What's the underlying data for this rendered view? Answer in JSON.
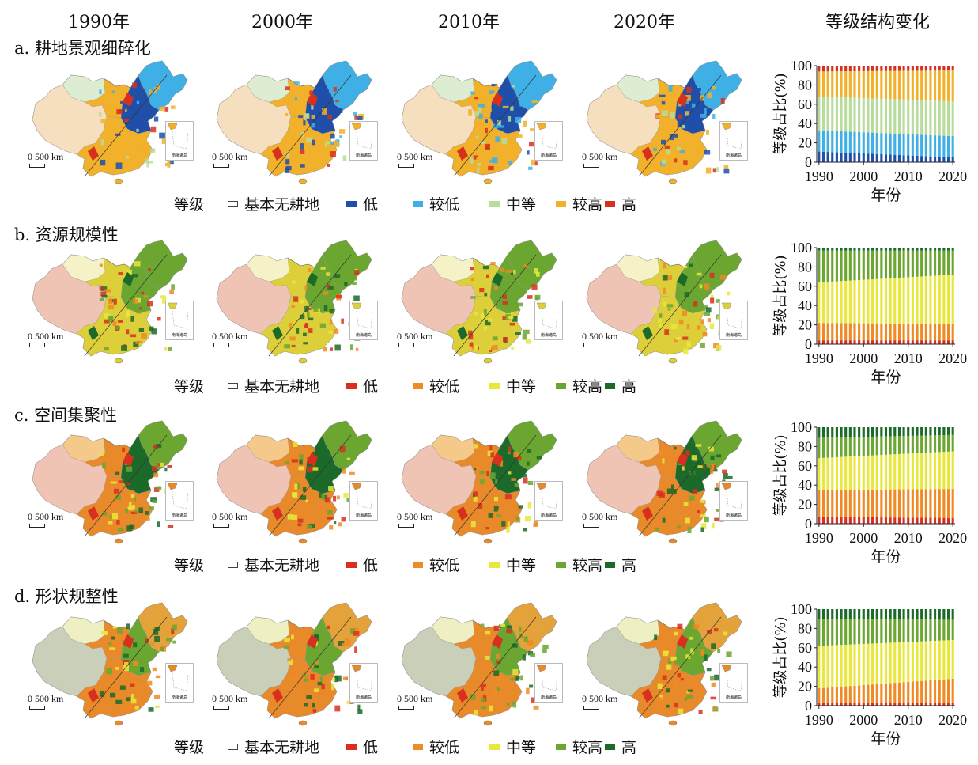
{
  "column_headers": [
    "1990年",
    "2000年",
    "2010年",
    "2020年",
    "等级结构变化"
  ],
  "scale_label": "0 500 km",
  "inset_caption": "南海诸岛",
  "legend_title": "等级",
  "panels": [
    {
      "title": "a. 耕地景观细碎化",
      "legend": [
        {
          "label": "基本无耕地",
          "color": "#ffffff"
        },
        {
          "label": "低",
          "color": "#1f4fa8"
        },
        {
          "label": "较低",
          "color": "#3fb0e6"
        },
        {
          "label": "中等",
          "color": "#b8dc9c"
        },
        {
          "label": "较高",
          "color": "#f2b12a"
        },
        {
          "label": "高",
          "color": "#d7301f"
        }
      ],
      "map_colors": {
        "west": "#f6dfbf",
        "northwest": "#dcedd2",
        "northeast": "#3fb0e6",
        "core": "#1f4fa8",
        "south": "#f2b12a",
        "hotspot": "#d7301f"
      }
    },
    {
      "title": "b. 资源规模性",
      "legend": [
        {
          "label": "基本无耕地",
          "color": "#ffffff"
        },
        {
          "label": "低",
          "color": "#d7301f"
        },
        {
          "label": "较低",
          "color": "#f08a24"
        },
        {
          "label": "中等",
          "color": "#e8e83a"
        },
        {
          "label": "较高",
          "color": "#6aa630"
        },
        {
          "label": "高",
          "color": "#1b6a2a"
        }
      ],
      "map_colors": {
        "west": "#f0c4b4",
        "northwest": "#f5f2c8",
        "northeast": "#6aa630",
        "core": "#6aa630",
        "south": "#dccf3a",
        "hotspot": "#1b6a2a"
      }
    },
    {
      "title": "c. 空间集聚性",
      "legend": [
        {
          "label": "基本无耕地",
          "color": "#ffffff"
        },
        {
          "label": "低",
          "color": "#d7301f"
        },
        {
          "label": "较低",
          "color": "#f08a24"
        },
        {
          "label": "中等",
          "color": "#e8e83a"
        },
        {
          "label": "较高",
          "color": "#6aa630"
        },
        {
          "label": "高",
          "color": "#1b6a2a"
        }
      ],
      "map_colors": {
        "west": "#f0c4b4",
        "northwest": "#f5c98a",
        "northeast": "#6aa630",
        "core": "#1b6a2a",
        "south": "#e88a2a",
        "hotspot": "#d7301f"
      }
    },
    {
      "title": "d. 形状规整性",
      "legend": [
        {
          "label": "基本无耕地",
          "color": "#ffffff"
        },
        {
          "label": "低",
          "color": "#d7301f"
        },
        {
          "label": "较低",
          "color": "#f08a24"
        },
        {
          "label": "中等",
          "color": "#e8e83a"
        },
        {
          "label": "较高",
          "color": "#6aa630"
        },
        {
          "label": "高",
          "color": "#1b6a2a"
        }
      ],
      "map_colors": {
        "west": "#c9cfb8",
        "northwest": "#eef0c4",
        "northeast": "#e3a23a",
        "core": "#6aa630",
        "south": "#e88a2a",
        "hotspot": "#d7301f"
      }
    }
  ],
  "chart_data": [
    {
      "type": "bar",
      "stacked": true,
      "xlabel": "年份",
      "ylabel": "等级占比(%)",
      "ylim": [
        0,
        100
      ],
      "yticks": [
        0,
        20,
        40,
        60,
        80,
        100
      ],
      "xticks": [
        1990,
        2000,
        2010,
        2020
      ],
      "x": [
        1990,
        1991,
        1992,
        1993,
        1994,
        1995,
        1996,
        1997,
        1998,
        1999,
        2000,
        2001,
        2002,
        2003,
        2004,
        2005,
        2006,
        2007,
        2008,
        2009,
        2010,
        2011,
        2012,
        2013,
        2014,
        2015,
        2016,
        2017,
        2018,
        2019,
        2020
      ],
      "series": [
        {
          "name": "低",
          "color": "#1f4fa8",
          "start": 11,
          "end": 5
        },
        {
          "name": "较低",
          "color": "#3fb0e6",
          "start": 22,
          "end": 22
        },
        {
          "name": "中等",
          "color": "#b8dc9c",
          "start": 35,
          "end": 36
        },
        {
          "name": "较高",
          "color": "#f2b12a",
          "start": 26,
          "end": 32
        },
        {
          "name": "高",
          "color": "#d7301f",
          "start": 6,
          "end": 5
        }
      ]
    },
    {
      "type": "bar",
      "stacked": true,
      "xlabel": "年份",
      "ylabel": "等级占比(%)",
      "ylim": [
        0,
        100
      ],
      "yticks": [
        0,
        20,
        40,
        60,
        80,
        100
      ],
      "xticks": [
        1990,
        2000,
        2010,
        2020
      ],
      "x": [
        1990,
        1991,
        1992,
        1993,
        1994,
        1995,
        1996,
        1997,
        1998,
        1999,
        2000,
        2001,
        2002,
        2003,
        2004,
        2005,
        2006,
        2007,
        2008,
        2009,
        2010,
        2011,
        2012,
        2013,
        2014,
        2015,
        2016,
        2017,
        2018,
        2019,
        2020
      ],
      "series": [
        {
          "name": "低",
          "color": "#d7301f",
          "start": 4,
          "end": 4
        },
        {
          "name": "较低",
          "color": "#f08a24",
          "start": 18,
          "end": 17
        },
        {
          "name": "中等",
          "color": "#e8e83a",
          "start": 42,
          "end": 51
        },
        {
          "name": "较高",
          "color": "#6aa630",
          "start": 33,
          "end": 25
        },
        {
          "name": "高",
          "color": "#1b6a2a",
          "start": 3,
          "end": 3
        }
      ]
    },
    {
      "type": "bar",
      "stacked": true,
      "xlabel": "年份",
      "ylabel": "等级占比(%)",
      "ylim": [
        0,
        100
      ],
      "yticks": [
        0,
        20,
        40,
        60,
        80,
        100
      ],
      "xticks": [
        1990,
        2000,
        2010,
        2020
      ],
      "x": [
        1990,
        1991,
        1992,
        1993,
        1994,
        1995,
        1996,
        1997,
        1998,
        1999,
        2000,
        2001,
        2002,
        2003,
        2004,
        2005,
        2006,
        2007,
        2008,
        2009,
        2010,
        2011,
        2012,
        2013,
        2014,
        2015,
        2016,
        2017,
        2018,
        2019,
        2020
      ],
      "series": [
        {
          "name": "低",
          "color": "#d7301f",
          "start": 7,
          "end": 6
        },
        {
          "name": "较低",
          "color": "#f08a24",
          "start": 28,
          "end": 30
        },
        {
          "name": "中等",
          "color": "#e8e83a",
          "start": 33,
          "end": 39
        },
        {
          "name": "较高",
          "color": "#6aa630",
          "start": 21,
          "end": 17
        },
        {
          "name": "高",
          "color": "#1b6a2a",
          "start": 11,
          "end": 8
        }
      ]
    },
    {
      "type": "bar",
      "stacked": true,
      "xlabel": "年份",
      "ylabel": "等级占比(%)",
      "ylim": [
        0,
        100
      ],
      "yticks": [
        0,
        20,
        40,
        60,
        80,
        100
      ],
      "xticks": [
        1990,
        2000,
        2010,
        2020
      ],
      "x": [
        1990,
        1991,
        1992,
        1993,
        1994,
        1995,
        1996,
        1997,
        1998,
        1999,
        2000,
        2001,
        2002,
        2003,
        2004,
        2005,
        2006,
        2007,
        2008,
        2009,
        2010,
        2011,
        2012,
        2013,
        2014,
        2015,
        2016,
        2017,
        2018,
        2019,
        2020
      ],
      "series": [
        {
          "name": "低",
          "color": "#d7301f",
          "start": 3,
          "end": 3
        },
        {
          "name": "较低",
          "color": "#f08a24",
          "start": 15,
          "end": 25
        },
        {
          "name": "中等",
          "color": "#e8e83a",
          "start": 44,
          "end": 40
        },
        {
          "name": "较高",
          "color": "#6aa630",
          "start": 28,
          "end": 21
        },
        {
          "name": "高",
          "color": "#1b6a2a",
          "start": 10,
          "end": 11
        }
      ]
    }
  ]
}
